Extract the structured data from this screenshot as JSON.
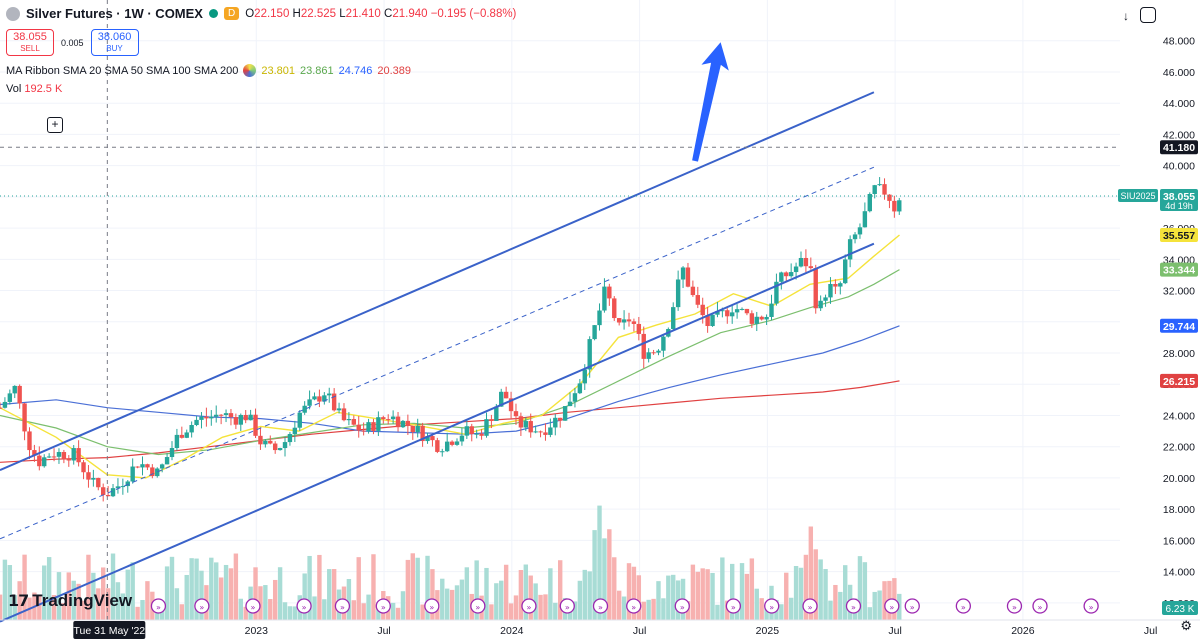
{
  "header": {
    "title": "Silver Futures · 1W · COMEX",
    "d_tag": "D",
    "ohlc": {
      "o": "22.150",
      "h": "22.525",
      "l": "21.410",
      "c": "21.940",
      "chg": "−0.195 (−0.88%)"
    }
  },
  "trade": {
    "sell_price": "38.055",
    "sell_label": "SELL",
    "spread": "0.005",
    "buy_price": "38.060",
    "buy_label": "BUY"
  },
  "ribbon": {
    "label": "MA Ribbon SMA 20 SMA 50 SMA 100 SMA 200",
    "v20": "23.801",
    "v50": "23.861",
    "v100": "24.746",
    "v200": "20.389"
  },
  "volume": {
    "label": "Vol",
    "value": "192.5 K"
  },
  "logo": {
    "text": "TradingView"
  },
  "colors": {
    "up": "#26a69a",
    "down": "#ef5350",
    "sma20": "#f5e33b",
    "sma50": "#7cbf6e",
    "sma100": "#4a6fd6",
    "sma200": "#e04141",
    "channel": "#3a62c9",
    "arrow": "#2962ff"
  },
  "chart_data": {
    "type": "candlestick",
    "symbol": "SIU2025",
    "y_ticks": [
      "12.000",
      "14.000",
      "16.000",
      "18.000",
      "20.000",
      "22.000",
      "24.000",
      "26.000",
      "28.000",
      "30.000",
      "32.000",
      "34.000",
      "36.000",
      "38.000",
      "40.000",
      "42.000",
      "44.000",
      "46.000",
      "48.000"
    ],
    "ylim": [
      10.9,
      49.2
    ],
    "x_ticks": [
      {
        "label": "Tue 31 May '22",
        "t": 0.0,
        "highlight": true
      },
      {
        "label": "2023",
        "t": 0.583
      },
      {
        "label": "Jul",
        "t": 1.083
      },
      {
        "label": "2024",
        "t": 1.583
      },
      {
        "label": "Jul",
        "t": 2.083
      },
      {
        "label": "2025",
        "t": 2.583
      },
      {
        "label": "Jul",
        "t": 3.083
      },
      {
        "label": "2026",
        "t": 3.583
      },
      {
        "label": "Jul",
        "t": 4.083
      }
    ],
    "xlim_years_from_start": [
      -0.42,
      4.1
    ],
    "price_labels": [
      {
        "value": 41.18,
        "text": "41.180",
        "style": "crosshair"
      },
      {
        "value": 38.055,
        "text": "38.055",
        "sub": "4d 19h",
        "tag": "SIU2025",
        "style": "last"
      },
      {
        "value": 35.557,
        "text": "35.557",
        "style": "sma20"
      },
      {
        "value": 33.344,
        "text": "33.344",
        "style": "sma50"
      },
      {
        "value": 29.744,
        "text": "29.744",
        "style": "sma100"
      },
      {
        "value": 26.215,
        "text": "26.215",
        "style": "sma200"
      }
    ],
    "volume_badge": "6.23 K",
    "channel": {
      "upper": [
        [
          -0.42,
          20.5
        ],
        [
          3.0,
          44.7
        ]
      ],
      "middle": [
        [
          -0.42,
          16.1
        ],
        [
          3.0,
          39.9
        ]
      ],
      "lower": [
        [
          -0.42,
          10.8
        ],
        [
          3.0,
          35.0
        ]
      ]
    },
    "crosshair": {
      "x": 0.0,
      "y": 41.18
    },
    "arrow": {
      "from": [
        2.3,
        40.3
      ],
      "to": [
        2.4,
        47.9
      ]
    },
    "close_path": [
      [
        -0.42,
        24.5
      ],
      [
        -0.36,
        25.8
      ],
      [
        -0.31,
        22.3
      ],
      [
        -0.27,
        21.0
      ],
      [
        -0.22,
        21.6
      ],
      [
        -0.13,
        21.5
      ],
      [
        -0.05,
        19.5
      ],
      [
        0.0,
        19.0
      ],
      [
        0.05,
        19.6
      ],
      [
        0.12,
        21.0
      ],
      [
        0.2,
        20.3
      ],
      [
        0.28,
        22.8
      ],
      [
        0.35,
        23.7
      ],
      [
        0.45,
        24.1
      ],
      [
        0.5,
        23.8
      ],
      [
        0.55,
        24.0
      ],
      [
        0.6,
        22.3
      ],
      [
        0.65,
        21.7
      ],
      [
        0.7,
        22.4
      ],
      [
        0.75,
        24.1
      ],
      [
        0.85,
        25.5
      ],
      [
        0.92,
        23.7
      ],
      [
        1.0,
        23.0
      ],
      [
        1.05,
        23.5
      ],
      [
        1.1,
        24.0
      ],
      [
        1.2,
        23.2
      ],
      [
        1.3,
        22.0
      ],
      [
        1.4,
        23.0
      ],
      [
        1.45,
        22.7
      ],
      [
        1.5,
        23.9
      ],
      [
        1.55,
        25.6
      ],
      [
        1.6,
        23.5
      ],
      [
        1.7,
        23.0
      ],
      [
        1.78,
        24.1
      ],
      [
        1.85,
        26.3
      ],
      [
        1.9,
        29.2
      ],
      [
        1.95,
        32.1
      ],
      [
        2.0,
        29.5
      ],
      [
        2.05,
        30.3
      ],
      [
        2.1,
        28.0
      ],
      [
        2.15,
        28.2
      ],
      [
        2.2,
        30.1
      ],
      [
        2.25,
        33.5
      ],
      [
        2.3,
        31.2
      ],
      [
        2.35,
        29.8
      ],
      [
        2.45,
        31.0
      ],
      [
        2.52,
        30.2
      ],
      [
        2.58,
        30.4
      ],
      [
        2.62,
        32.5
      ],
      [
        2.68,
        33.3
      ],
      [
        2.72,
        33.9
      ],
      [
        2.75,
        33.6
      ],
      [
        2.78,
        30.5
      ],
      [
        2.82,
        32.3
      ],
      [
        2.86,
        31.8
      ],
      [
        2.9,
        34.7
      ],
      [
        2.95,
        36.2
      ],
      [
        3.0,
        38.5
      ],
      [
        3.05,
        38.3
      ],
      [
        3.08,
        37.3
      ],
      [
        3.1,
        38.05
      ]
    ],
    "sma20_path": [
      [
        -0.42,
        24.5
      ],
      [
        -0.2,
        22.6
      ],
      [
        0.0,
        20.2
      ],
      [
        0.15,
        20.0
      ],
      [
        0.3,
        21.2
      ],
      [
        0.45,
        22.6
      ],
      [
        0.6,
        23.3
      ],
      [
        0.75,
        23.0
      ],
      [
        0.9,
        24.2
      ],
      [
        1.05,
        23.8
      ],
      [
        1.2,
        23.4
      ],
      [
        1.4,
        22.8
      ],
      [
        1.55,
        23.5
      ],
      [
        1.7,
        24.0
      ],
      [
        1.85,
        26.0
      ],
      [
        2.0,
        29.0
      ],
      [
        2.15,
        29.8
      ],
      [
        2.3,
        30.5
      ],
      [
        2.45,
        31.8
      ],
      [
        2.6,
        31.0
      ],
      [
        2.75,
        32.4
      ],
      [
        2.9,
        32.8
      ],
      [
        3.0,
        34.2
      ],
      [
        3.1,
        35.557
      ]
    ],
    "sma50_path": [
      [
        -0.42,
        24.0
      ],
      [
        -0.2,
        23.2
      ],
      [
        0.0,
        22.0
      ],
      [
        0.2,
        21.5
      ],
      [
        0.4,
        21.8
      ],
      [
        0.6,
        22.4
      ],
      [
        0.8,
        22.9
      ],
      [
        1.0,
        23.4
      ],
      [
        1.2,
        23.5
      ],
      [
        1.4,
        23.2
      ],
      [
        1.6,
        23.5
      ],
      [
        1.8,
        24.6
      ],
      [
        2.0,
        26.2
      ],
      [
        2.2,
        27.8
      ],
      [
        2.4,
        29.3
      ],
      [
        2.6,
        30.1
      ],
      [
        2.75,
        30.9
      ],
      [
        2.9,
        31.6
      ],
      [
        3.0,
        32.4
      ],
      [
        3.1,
        33.344
      ]
    ],
    "sma100_path": [
      [
        -0.42,
        24.7
      ],
      [
        -0.2,
        25.0
      ],
      [
        0.0,
        24.5
      ],
      [
        0.2,
        24.2
      ],
      [
        0.4,
        23.9
      ],
      [
        0.6,
        23.8
      ],
      [
        0.8,
        23.5
      ],
      [
        1.0,
        23.0
      ],
      [
        1.2,
        22.9
      ],
      [
        1.4,
        22.8
      ],
      [
        1.6,
        23.0
      ],
      [
        1.8,
        23.8
      ],
      [
        2.0,
        24.9
      ],
      [
        2.2,
        25.8
      ],
      [
        2.4,
        26.6
      ],
      [
        2.6,
        27.3
      ],
      [
        2.8,
        28.0
      ],
      [
        2.95,
        28.8
      ],
      [
        3.1,
        29.744
      ]
    ],
    "sma200_path": [
      [
        -0.42,
        21.0
      ],
      [
        -0.2,
        21.2
      ],
      [
        0.0,
        21.3
      ],
      [
        0.2,
        21.6
      ],
      [
        0.4,
        22.0
      ],
      [
        0.6,
        22.4
      ],
      [
        0.8,
        22.8
      ],
      [
        1.0,
        23.1
      ],
      [
        1.2,
        23.4
      ],
      [
        1.4,
        23.6
      ],
      [
        1.6,
        23.8
      ],
      [
        1.8,
        24.2
      ],
      [
        2.0,
        24.5
      ],
      [
        2.2,
        24.8
      ],
      [
        2.4,
        25.1
      ],
      [
        2.6,
        25.3
      ],
      [
        2.8,
        25.5
      ],
      [
        2.95,
        25.8
      ],
      [
        3.1,
        26.215
      ]
    ]
  }
}
